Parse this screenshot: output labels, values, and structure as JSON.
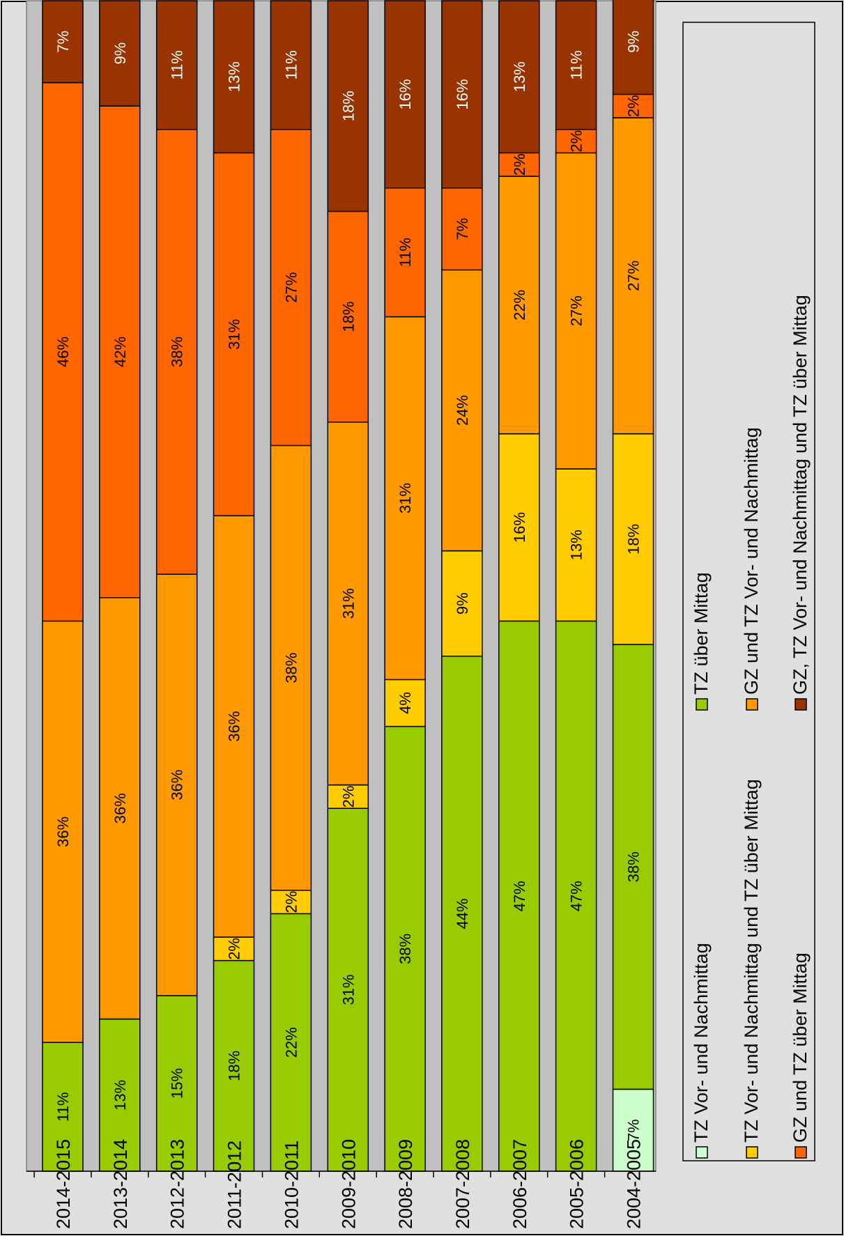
{
  "chart_data": {
    "type": "bar",
    "stacked": true,
    "orientation": "horizontal",
    "percent_labels": true,
    "categories": [
      "2014-2015",
      "2013-2014",
      "2012-2013",
      "2011-2012",
      "2010-2011",
      "2009-2010",
      "2008-2009",
      "2007-2008",
      "2006-2007",
      "2005-2006",
      "2004-2005"
    ],
    "series": [
      {
        "name": "TZ Vor- und Nachmittag",
        "color": "#ccffcc",
        "values": [
          0,
          0,
          0,
          0,
          0,
          0,
          0,
          0,
          0,
          0,
          7
        ]
      },
      {
        "name": "TZ über Mittag",
        "color": "#99cc00",
        "values": [
          11,
          13,
          15,
          18,
          22,
          31,
          38,
          44,
          47,
          47,
          38
        ]
      },
      {
        "name": "TZ Vor- und Nachmittag und TZ über Mittag",
        "color": "#ffcc00",
        "values": [
          0,
          0,
          0,
          2,
          2,
          2,
          4,
          9,
          16,
          13,
          18
        ]
      },
      {
        "name": "GZ und TZ Vor- und Nachmittag",
        "color": "#ff9900",
        "values": [
          36,
          36,
          36,
          36,
          38,
          31,
          31,
          24,
          22,
          27,
          27
        ]
      },
      {
        "name": "GZ und TZ über Mittag",
        "color": "#ff6600",
        "values": [
          46,
          42,
          38,
          31,
          27,
          18,
          11,
          7,
          2,
          2,
          2
        ]
      },
      {
        "name": "GZ, TZ Vor- und Nachmittag und TZ über Mittag",
        "color": "#993300",
        "values": [
          7,
          9,
          11,
          13,
          11,
          18,
          16,
          16,
          13,
          11,
          9
        ]
      }
    ],
    "label_colors": {
      "dark_series": "#ffffff",
      "light_series": "#000000"
    },
    "xlim": [
      0,
      100
    ],
    "grid": false,
    "legend_position": "bottom",
    "plot_background": "#c0c0c0",
    "chart_background": "#e0e0e0"
  }
}
